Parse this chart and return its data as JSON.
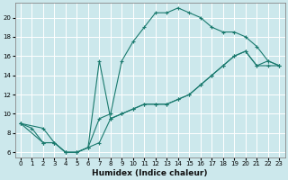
{
  "xlabel": "Humidex (Indice chaleur)",
  "background_color": "#cce8ec",
  "grid_color": "#ffffff",
  "line_color": "#1a7a6e",
  "xlim": [
    -0.5,
    23.5
  ],
  "ylim": [
    5.5,
    21.5
  ],
  "xticks": [
    0,
    1,
    2,
    3,
    4,
    5,
    6,
    7,
    8,
    9,
    10,
    11,
    12,
    13,
    14,
    15,
    16,
    17,
    18,
    19,
    20,
    21,
    22,
    23
  ],
  "yticks": [
    6,
    8,
    10,
    12,
    14,
    16,
    18,
    20
  ],
  "line1_x": [
    0,
    1,
    2,
    3,
    4,
    5,
    6,
    7,
    8,
    9,
    10,
    11,
    12,
    13,
    14,
    15,
    16,
    17,
    18,
    19,
    20,
    21,
    22,
    23
  ],
  "line1_y": [
    9.0,
    8.5,
    7.0,
    7.0,
    6.0,
    6.0,
    6.5,
    7.0,
    9.5,
    10.0,
    10.5,
    11.0,
    11.0,
    11.0,
    11.5,
    12.0,
    13.0,
    14.0,
    15.0,
    16.0,
    16.5,
    15.0,
    15.0,
    15.0
  ],
  "line2_x": [
    0,
    2,
    3,
    4,
    5,
    6,
    7,
    8,
    9,
    10,
    11,
    12,
    13,
    14,
    15,
    16,
    17,
    18,
    19,
    20,
    21,
    22,
    23
  ],
  "line2_y": [
    9.0,
    7.0,
    7.0,
    6.0,
    6.0,
    6.5,
    9.5,
    10.0,
    15.5,
    17.5,
    19.0,
    20.5,
    20.5,
    21.0,
    20.5,
    20.0,
    19.0,
    18.5,
    18.5,
    18.0,
    17.0,
    15.5,
    15.0
  ],
  "line3_x": [
    0,
    2,
    3,
    4,
    5,
    6,
    7,
    8,
    9,
    10,
    11,
    12,
    13,
    14,
    15,
    16,
    17,
    18,
    19,
    20,
    21,
    22,
    23
  ],
  "line3_y": [
    9.0,
    8.5,
    7.0,
    6.0,
    6.0,
    6.5,
    15.5,
    9.5,
    10.0,
    10.5,
    11.0,
    11.0,
    11.0,
    11.5,
    12.0,
    13.0,
    14.0,
    15.0,
    16.0,
    16.5,
    15.0,
    15.5,
    15.0
  ]
}
